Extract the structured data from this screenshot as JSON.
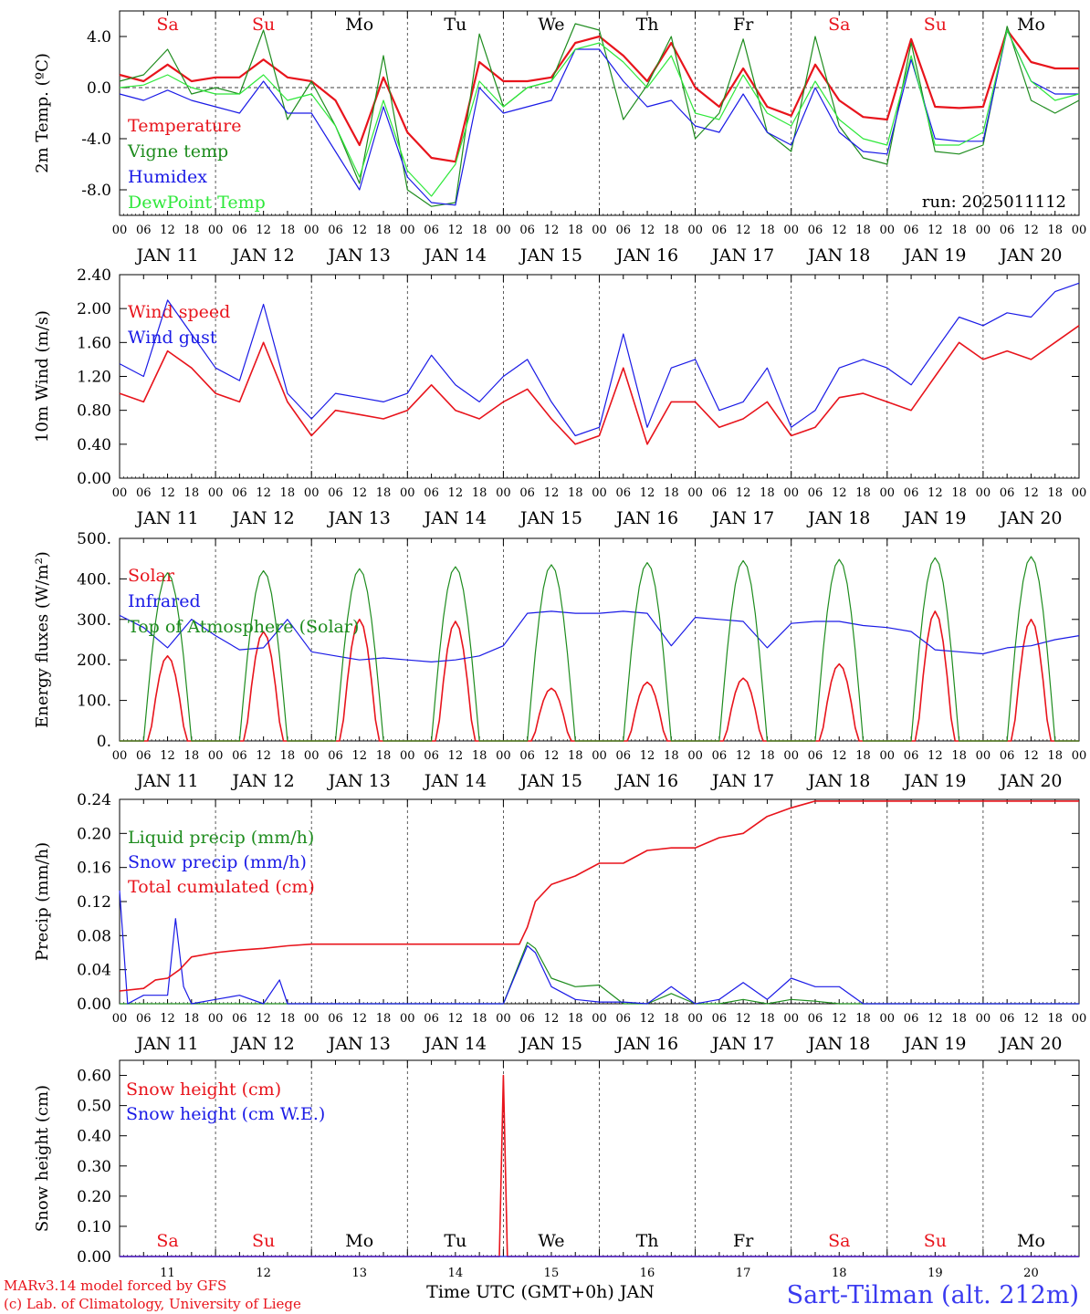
{
  "run_label": "run: 2025011112",
  "day_numbers": [
    "11",
    "12",
    "13",
    "14",
    "15",
    "16",
    "17",
    "18",
    "19",
    "20"
  ],
  "date_labels": [
    "JAN 11",
    "JAN 12",
    "JAN 13",
    "JAN 14",
    "JAN 15",
    "JAN 16",
    "JAN 17",
    "JAN 18",
    "JAN 19",
    "JAN 20"
  ],
  "weekdays": [
    "Sa",
    "Su",
    "Mo",
    "Tu",
    "We",
    "Th",
    "Fr",
    "Sa",
    "Su",
    "Mo"
  ],
  "hour_ticks": [
    "00",
    "06",
    "12",
    "18"
  ],
  "hour_end": "00",
  "x_axis_label": "Time UTC (GMT+0h) JAN",
  "credit_line1": "MARv3.14 model forced by GFS",
  "credit_line2": "(c) Lab. of Climatology, University of Liege",
  "station": "Sart-Tilman (alt. 212m)",
  "colors": {
    "red": "#e8141c",
    "green": "#1e8c1e",
    "blue": "#1a1ae6",
    "lightgreen": "#2ee83a",
    "weekend": "#e8141c"
  },
  "chart_data": [
    {
      "type": "line",
      "ylabel": "2m Temp. (ºC)",
      "yticks": [
        "4.0",
        "0.0",
        "-4.0",
        "-8.0"
      ],
      "ylim": [
        -10,
        6
      ],
      "x_hours_range": [
        0,
        240
      ],
      "series": [
        {
          "name": "Temperature",
          "color": "red",
          "x": [
            0,
            6,
            12,
            18,
            24,
            30,
            36,
            42,
            48,
            54,
            60,
            66,
            72,
            78,
            84,
            90,
            96,
            102,
            108,
            114,
            120,
            126,
            132,
            138,
            144,
            150,
            156,
            162,
            168,
            174,
            180,
            186,
            192,
            198,
            204,
            210,
            216,
            222,
            228,
            234,
            240
          ],
          "values": [
            1.0,
            0.5,
            1.8,
            0.5,
            0.8,
            0.8,
            2.2,
            0.8,
            0.5,
            -1.0,
            -4.5,
            0.8,
            -3.5,
            -5.5,
            -5.8,
            2.0,
            0.5,
            0.5,
            0.8,
            3.5,
            4.0,
            2.5,
            0.5,
            3.5,
            0.0,
            -1.5,
            1.5,
            -1.5,
            -2.2,
            1.8,
            -1.0,
            -2.3,
            -2.5,
            3.8,
            -1.5,
            -1.6,
            -1.5,
            4.5,
            2.0,
            1.5,
            1.5
          ]
        },
        {
          "name": "Vigne temp",
          "color": "green",
          "x": [
            0,
            6,
            12,
            18,
            24,
            30,
            36,
            42,
            48,
            54,
            60,
            66,
            72,
            78,
            84,
            90,
            96,
            102,
            108,
            114,
            120,
            126,
            132,
            138,
            144,
            150,
            156,
            162,
            168,
            174,
            180,
            186,
            192,
            198,
            204,
            210,
            216,
            222,
            228,
            234,
            240
          ],
          "values": [
            0.5,
            1.0,
            3.0,
            -0.5,
            0.0,
            -0.5,
            4.5,
            -2.5,
            0.5,
            -3.0,
            -7.5,
            2.5,
            -8.0,
            -9.3,
            -9.0,
            4.2,
            -1.5,
            0.0,
            0.5,
            5.0,
            4.5,
            -2.5,
            0.2,
            4.0,
            -4.0,
            -2.0,
            3.8,
            -3.5,
            -5.0,
            4.0,
            -3.0,
            -5.5,
            -6.0,
            3.5,
            -5.0,
            -5.2,
            -4.5,
            4.8,
            -1.0,
            -2.0,
            -1.0
          ]
        },
        {
          "name": "Humidex",
          "color": "blue",
          "x": [
            0,
            6,
            12,
            18,
            24,
            30,
            36,
            42,
            48,
            54,
            60,
            66,
            72,
            78,
            84,
            90,
            96,
            102,
            108,
            114,
            120,
            126,
            132,
            138,
            144,
            150,
            156,
            162,
            168,
            174,
            180,
            186,
            192,
            198,
            204,
            210,
            216,
            222,
            228,
            234,
            240
          ],
          "values": [
            -0.5,
            -1.0,
            -0.2,
            -1.0,
            -1.5,
            -2.0,
            0.5,
            -2.0,
            -2.0,
            -5.0,
            -8.0,
            -1.5,
            -7.0,
            -9.0,
            -9.2,
            0.0,
            -2.0,
            -1.5,
            -1.0,
            3.0,
            3.0,
            0.5,
            -1.5,
            -1.0,
            -3.0,
            -3.5,
            -0.5,
            -3.5,
            -4.5,
            0.0,
            -3.5,
            -5.0,
            -5.2,
            2.2,
            -4.0,
            -4.2,
            -4.2,
            4.5,
            0.5,
            -0.5,
            -0.5
          ]
        },
        {
          "name": "DewPoint Temp",
          "color": "lightgreen",
          "x": [
            0,
            6,
            12,
            18,
            24,
            30,
            36,
            42,
            48,
            54,
            60,
            66,
            72,
            78,
            84,
            90,
            96,
            102,
            108,
            114,
            120,
            126,
            132,
            138,
            144,
            150,
            156,
            162,
            168,
            174,
            180,
            186,
            192,
            198,
            204,
            210,
            216,
            222,
            228,
            234,
            240
          ],
          "values": [
            0.0,
            0.2,
            1.0,
            0.0,
            -0.5,
            -0.5,
            1.0,
            -1.0,
            -0.5,
            -3.0,
            -7.0,
            -1.0,
            -6.5,
            -8.5,
            -6.0,
            0.5,
            -1.5,
            0.0,
            0.5,
            3.0,
            3.5,
            2.0,
            0.0,
            2.5,
            -2.0,
            -2.5,
            1.0,
            -2.0,
            -3.0,
            0.5,
            -2.5,
            -4.0,
            -4.5,
            2.5,
            -4.5,
            -4.5,
            -3.5,
            4.5,
            0.5,
            -1.0,
            -0.5
          ]
        }
      ]
    },
    {
      "type": "line",
      "ylabel": "10m Wind (m/s)",
      "yticks": [
        "2.40",
        "2.00",
        "1.60",
        "1.20",
        "0.80",
        "0.40",
        "0.00"
      ],
      "ylim": [
        0,
        2.4
      ],
      "x_hours_range": [
        0,
        240
      ],
      "series": [
        {
          "name": "Wind speed",
          "color": "red",
          "x": [
            0,
            6,
            12,
            18,
            24,
            30,
            36,
            42,
            48,
            54,
            60,
            66,
            72,
            78,
            84,
            90,
            96,
            102,
            108,
            114,
            120,
            126,
            132,
            138,
            144,
            150,
            156,
            162,
            168,
            174,
            180,
            186,
            192,
            198,
            204,
            210,
            216,
            222,
            228,
            234,
            240
          ],
          "values": [
            1.0,
            0.9,
            1.5,
            1.3,
            1.0,
            0.9,
            1.6,
            0.9,
            0.5,
            0.8,
            0.75,
            0.7,
            0.8,
            1.1,
            0.8,
            0.7,
            0.9,
            1.05,
            0.7,
            0.4,
            0.5,
            1.3,
            0.4,
            0.9,
            0.9,
            0.6,
            0.7,
            0.9,
            0.5,
            0.6,
            0.95,
            1.0,
            0.9,
            0.8,
            1.2,
            1.6,
            1.4,
            1.5,
            1.4,
            1.6,
            1.8
          ]
        },
        {
          "name": "Wind gust",
          "color": "blue",
          "x": [
            0,
            6,
            12,
            18,
            24,
            30,
            36,
            42,
            48,
            54,
            60,
            66,
            72,
            78,
            84,
            90,
            96,
            102,
            108,
            114,
            120,
            126,
            132,
            138,
            144,
            150,
            156,
            162,
            168,
            174,
            180,
            186,
            192,
            198,
            204,
            210,
            216,
            222,
            228,
            234,
            240
          ],
          "values": [
            1.35,
            1.2,
            2.1,
            1.7,
            1.3,
            1.15,
            2.05,
            1.0,
            0.7,
            1.0,
            0.95,
            0.9,
            1.0,
            1.45,
            1.1,
            0.9,
            1.2,
            1.4,
            0.9,
            0.5,
            0.6,
            1.7,
            0.6,
            1.3,
            1.4,
            0.8,
            0.9,
            1.3,
            0.6,
            0.8,
            1.3,
            1.4,
            1.3,
            1.1,
            1.5,
            1.9,
            1.8,
            1.95,
            1.9,
            2.2,
            2.3
          ]
        }
      ]
    },
    {
      "type": "line",
      "ylabel": "Energy fluxes (W/m²)",
      "yticks": [
        "500.",
        "400.",
        "300.",
        "200.",
        "100.",
        "0."
      ],
      "ylim": [
        0,
        500
      ],
      "x_hours_range": [
        0,
        240
      ],
      "series": [
        {
          "name": "Solar",
          "color": "red",
          "peaks_at_noon": [
            210,
            270,
            300,
            295,
            130,
            145,
            155,
            190,
            320,
            300
          ]
        },
        {
          "name": "Infrared",
          "color": "blue",
          "x": [
            0,
            6,
            12,
            18,
            24,
            30,
            36,
            42,
            48,
            54,
            60,
            66,
            72,
            78,
            84,
            90,
            96,
            102,
            108,
            114,
            120,
            126,
            132,
            138,
            144,
            150,
            156,
            162,
            168,
            174,
            180,
            186,
            192,
            198,
            204,
            210,
            216,
            222,
            228,
            234,
            240
          ],
          "values": [
            310,
            280,
            230,
            300,
            260,
            225,
            230,
            300,
            220,
            210,
            200,
            205,
            200,
            195,
            200,
            210,
            235,
            315,
            320,
            315,
            315,
            320,
            315,
            235,
            305,
            300,
            295,
            230,
            290,
            295,
            295,
            285,
            280,
            270,
            225,
            220,
            215,
            230,
            235,
            250,
            260
          ]
        },
        {
          "name": "Top of Atmosphere (Solar)",
          "color": "green",
          "peaks_at_noon": [
            415,
            420,
            425,
            430,
            435,
            440,
            445,
            448,
            452,
            455
          ]
        }
      ]
    },
    {
      "type": "line",
      "ylabel": "Precip (mm/h)",
      "yticks": [
        "0.24",
        "0.20",
        "0.16",
        "0.12",
        "0.08",
        "0.04",
        "0.00"
      ],
      "ylim": [
        0,
        0.24
      ],
      "x_hours_range": [
        0,
        240
      ],
      "series": [
        {
          "name": "Liquid precip (mm/h)",
          "color": "green",
          "x": [
            0,
            6,
            12,
            18,
            24,
            30,
            36,
            42,
            48,
            60,
            72,
            84,
            96,
            102,
            104,
            108,
            114,
            120,
            126,
            132,
            138,
            144,
            150,
            156,
            162,
            168,
            174,
            180,
            186,
            192,
            204,
            216,
            228,
            240
          ],
          "values": [
            0.0,
            0.0,
            0.0,
            0.0,
            0.0,
            0.0,
            0.0,
            0.0,
            0.0,
            0.0,
            0.0,
            0.0,
            0.0,
            0.072,
            0.065,
            0.03,
            0.02,
            0.022,
            0.0,
            0.0,
            0.012,
            0.0,
            0.0,
            0.005,
            0.0,
            0.005,
            0.003,
            0.0,
            0.0,
            0.0,
            0.0,
            0.0,
            0.0,
            0.0
          ]
        },
        {
          "name": "Snow precip (mm/h)",
          "color": "blue",
          "x": [
            0,
            2,
            6,
            12,
            14,
            16,
            18,
            24,
            30,
            36,
            40,
            42,
            48,
            60,
            72,
            84,
            96,
            102,
            104,
            108,
            114,
            120,
            126,
            132,
            138,
            144,
            150,
            156,
            162,
            168,
            174,
            180,
            186,
            192,
            204,
            216,
            228,
            240
          ],
          "values": [
            0.133,
            0.0,
            0.01,
            0.01,
            0.1,
            0.02,
            0.0,
            0.005,
            0.01,
            0.0,
            0.028,
            0.0,
            0.0,
            0.0,
            0.0,
            0.0,
            0.0,
            0.068,
            0.06,
            0.02,
            0.005,
            0.002,
            0.002,
            0.0,
            0.02,
            0.0,
            0.005,
            0.025,
            0.005,
            0.03,
            0.02,
            0.02,
            0.0,
            0.0,
            0.0,
            0.0,
            0.0,
            0.0
          ]
        },
        {
          "name": "Total cumulated (cm)",
          "color": "red",
          "x": [
            0,
            6,
            9,
            12,
            15,
            18,
            24,
            30,
            36,
            42,
            48,
            60,
            72,
            84,
            96,
            100,
            102,
            104,
            108,
            114,
            120,
            126,
            132,
            138,
            144,
            150,
            156,
            162,
            168,
            174,
            180,
            186,
            192,
            204,
            216,
            228,
            240
          ],
          "values": [
            0.015,
            0.018,
            0.028,
            0.03,
            0.04,
            0.055,
            0.06,
            0.063,
            0.065,
            0.068,
            0.07,
            0.07,
            0.07,
            0.07,
            0.07,
            0.07,
            0.09,
            0.12,
            0.14,
            0.15,
            0.165,
            0.165,
            0.18,
            0.183,
            0.183,
            0.195,
            0.2,
            0.22,
            0.23,
            0.238,
            0.238,
            0.238,
            0.238,
            0.238,
            0.238,
            0.238,
            0.238
          ]
        }
      ]
    },
    {
      "type": "line",
      "ylabel": "Snow height (cm)",
      "yticks": [
        "0.60",
        "0.50",
        "0.40",
        "0.30",
        "0.20",
        "0.10",
        "0.00"
      ],
      "ylim": [
        0,
        0.65
      ],
      "x_hours_range": [
        0,
        240
      ],
      "series": [
        {
          "name": "Snow height (cm)",
          "color": "red",
          "x": [
            0,
            94,
            95,
            96,
            97,
            240
          ],
          "values": [
            0,
            0,
            0,
            0.6,
            0,
            0
          ]
        },
        {
          "name": "Snow height (cm W.E.)",
          "color": "blue",
          "x": [
            0,
            240
          ],
          "values": [
            0,
            0
          ]
        }
      ]
    }
  ]
}
